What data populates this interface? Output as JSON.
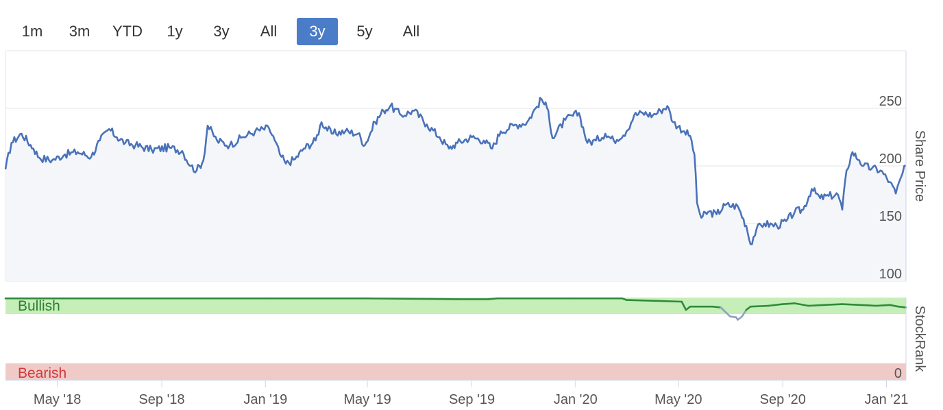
{
  "range_selector": {
    "buttons": [
      {
        "label": "1m",
        "active": false
      },
      {
        "label": "3m",
        "active": false
      },
      {
        "label": "YTD",
        "active": false
      },
      {
        "label": "1y",
        "active": false
      },
      {
        "label": "3y",
        "active": false
      },
      {
        "label": "All",
        "active": false
      },
      {
        "label": "3y",
        "active": true
      },
      {
        "label": "5y",
        "active": false
      },
      {
        "label": "All",
        "active": false
      }
    ],
    "active_color": "#4a7cc7"
  },
  "chart_data": [
    {
      "type": "line",
      "title": "",
      "ylabel": "Share Price",
      "ylim": [
        100,
        300
      ],
      "yticks": [
        100,
        150,
        250
      ],
      "ytick_labels": [
        "100",
        "150",
        "250"
      ],
      "ytick_overlapped_label": "200",
      "line_color": "#4a72b8",
      "fill_color": "#f4f6fa",
      "x_range": [
        "2018-03-01",
        "2021-01-24"
      ],
      "series": [
        {
          "name": "Share Price",
          "points": [
            [
              "2018-03-01",
              197
            ],
            [
              "2018-03-08",
              220
            ],
            [
              "2018-03-20",
              228
            ],
            [
              "2018-04-03",
              215
            ],
            [
              "2018-04-10",
              207
            ],
            [
              "2018-04-25",
              205
            ],
            [
              "2018-05-10",
              210
            ],
            [
              "2018-05-25",
              212
            ],
            [
              "2018-06-10",
              208
            ],
            [
              "2018-06-20",
              222
            ],
            [
              "2018-07-01",
              232
            ],
            [
              "2018-07-10",
              225
            ],
            [
              "2018-07-20",
              220
            ],
            [
              "2018-08-01",
              218
            ],
            [
              "2018-08-20",
              214
            ],
            [
              "2018-09-10",
              216
            ],
            [
              "2018-09-25",
              213
            ],
            [
              "2018-10-05",
              200
            ],
            [
              "2018-10-12",
              196
            ],
            [
              "2018-10-20",
              205
            ],
            [
              "2018-10-25",
              235
            ],
            [
              "2018-11-05",
              222
            ],
            [
              "2018-11-20",
              218
            ],
            [
              "2018-12-05",
              225
            ],
            [
              "2018-12-20",
              230
            ],
            [
              "2019-01-05",
              233
            ],
            [
              "2019-01-12",
              222
            ],
            [
              "2019-01-18",
              210
            ],
            [
              "2019-01-25",
              202
            ],
            [
              "2019-02-05",
              206
            ],
            [
              "2019-02-15",
              215
            ],
            [
              "2019-03-01",
              222
            ],
            [
              "2019-03-08",
              238
            ],
            [
              "2019-03-20",
              228
            ],
            [
              "2019-04-05",
              230
            ],
            [
              "2019-04-20",
              228
            ],
            [
              "2019-04-28",
              218
            ],
            [
              "2019-05-10",
              238
            ],
            [
              "2019-05-20",
              248
            ],
            [
              "2019-05-28",
              252
            ],
            [
              "2019-06-10",
              244
            ],
            [
              "2019-06-25",
              248
            ],
            [
              "2019-07-10",
              236
            ],
            [
              "2019-07-25",
              225
            ],
            [
              "2019-08-05",
              215
            ],
            [
              "2019-08-15",
              220
            ],
            [
              "2019-09-01",
              225
            ],
            [
              "2019-09-15",
              222
            ],
            [
              "2019-09-25",
              215
            ],
            [
              "2019-10-05",
              230
            ],
            [
              "2019-10-20",
              235
            ],
            [
              "2019-11-05",
              238
            ],
            [
              "2019-11-15",
              250
            ],
            [
              "2019-11-22",
              258
            ],
            [
              "2019-11-30",
              248
            ],
            [
              "2019-12-05",
              224
            ],
            [
              "2019-12-20",
              240
            ],
            [
              "2020-01-05",
              246
            ],
            [
              "2020-01-15",
              220
            ],
            [
              "2020-01-25",
              222
            ],
            [
              "2020-02-05",
              228
            ],
            [
              "2020-02-15",
              222
            ],
            [
              "2020-03-01",
              230
            ],
            [
              "2020-03-10",
              244
            ],
            [
              "2020-03-20",
              246
            ],
            [
              "2020-04-01",
              244
            ],
            [
              "2020-04-10",
              248
            ],
            [
              "2020-04-18",
              252
            ],
            [
              "2020-04-25",
              238
            ],
            [
              "2020-05-08",
              230
            ],
            [
              "2020-05-15",
              226
            ],
            [
              "2020-05-20",
              210
            ],
            [
              "2020-05-23",
              168
            ],
            [
              "2020-05-28",
              155
            ],
            [
              "2020-06-05",
              160
            ],
            [
              "2020-06-15",
              158
            ],
            [
              "2020-06-25",
              166
            ],
            [
              "2020-07-10",
              165
            ],
            [
              "2020-07-20",
              148
            ],
            [
              "2020-07-25",
              132
            ],
            [
              "2020-08-01",
              145
            ],
            [
              "2020-08-10",
              150
            ],
            [
              "2020-08-25",
              148
            ],
            [
              "2020-09-05",
              152
            ],
            [
              "2020-09-15",
              160
            ],
            [
              "2020-09-25",
              162
            ],
            [
              "2020-10-05",
              180
            ],
            [
              "2020-10-15",
              172
            ],
            [
              "2020-10-25",
              174
            ],
            [
              "2020-11-05",
              175
            ],
            [
              "2020-11-10",
              162
            ],
            [
              "2020-11-15",
              196
            ],
            [
              "2020-11-22",
              212
            ],
            [
              "2020-11-30",
              205
            ],
            [
              "2020-12-05",
              200
            ],
            [
              "2020-12-15",
              198
            ],
            [
              "2020-12-25",
              196
            ],
            [
              "2021-01-05",
              186
            ],
            [
              "2021-01-12",
              176
            ],
            [
              "2021-01-18",
              190
            ],
            [
              "2021-01-24",
              200
            ]
          ]
        }
      ]
    },
    {
      "type": "line",
      "title": "",
      "ylabel": "StockRank",
      "ylim": [
        0,
        100
      ],
      "ytick_labels": [
        "0"
      ],
      "bands": [
        {
          "label": "Bullish",
          "from": 80,
          "to": 100,
          "color": "#c5eeb8",
          "text_color": "#2e7d32"
        },
        {
          "label": "Bearish",
          "from": 0,
          "to": 20,
          "color": "#f0cac6",
          "text_color": "#d0393d"
        }
      ],
      "line_color": "#2e8b3a",
      "low_segment_color": "#8fa0b8",
      "series": [
        {
          "name": "StockRank",
          "points": [
            [
              "2018-03-01",
              99
            ],
            [
              "2018-09-01",
              99
            ],
            [
              "2019-01-01",
              99
            ],
            [
              "2019-05-01",
              99
            ],
            [
              "2019-08-15",
              98
            ],
            [
              "2019-09-20",
              98
            ],
            [
              "2019-10-01",
              99
            ],
            [
              "2020-01-01",
              99
            ],
            [
              "2020-02-25",
              99
            ],
            [
              "2020-03-01",
              97
            ],
            [
              "2020-04-05",
              96
            ],
            [
              "2020-05-05",
              95
            ],
            [
              "2020-05-10",
              85
            ],
            [
              "2020-05-15",
              89
            ],
            [
              "2020-06-10",
              89
            ],
            [
              "2020-06-20",
              88
            ],
            [
              "2020-07-01",
              77
            ],
            [
              "2020-07-08",
              76
            ],
            [
              "2020-07-10",
              73
            ],
            [
              "2020-07-15",
              77
            ],
            [
              "2020-07-20",
              85
            ],
            [
              "2020-07-25",
              89
            ],
            [
              "2020-08-15",
              90
            ],
            [
              "2020-09-01",
              92
            ],
            [
              "2020-09-15",
              93
            ],
            [
              "2020-10-01",
              90
            ],
            [
              "2020-10-20",
              91
            ],
            [
              "2020-11-10",
              92
            ],
            [
              "2020-12-01",
              91
            ],
            [
              "2020-12-20",
              90
            ],
            [
              "2021-01-05",
              91
            ],
            [
              "2021-01-15",
              89
            ],
            [
              "2021-01-24",
              88
            ]
          ]
        }
      ]
    }
  ],
  "x_axis": {
    "tick_labels": [
      {
        "label": "May '18",
        "date": "2018-05-01"
      },
      {
        "label": "Sep '18",
        "date": "2018-09-01"
      },
      {
        "label": "Jan '19",
        "date": "2019-01-01"
      },
      {
        "label": "May '19",
        "date": "2019-05-01"
      },
      {
        "label": "Sep '19",
        "date": "2019-09-01"
      },
      {
        "label": "Jan '20",
        "date": "2020-01-01"
      },
      {
        "label": "May '20",
        "date": "2020-05-01"
      },
      {
        "label": "Sep '20",
        "date": "2020-09-01"
      },
      {
        "label": "Jan '21",
        "date": "2021-01-01"
      }
    ]
  }
}
